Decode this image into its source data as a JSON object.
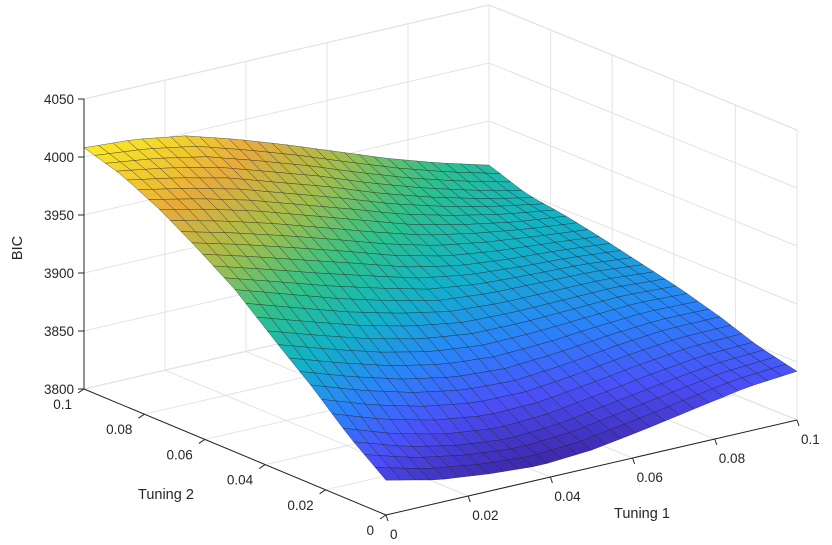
{
  "chart_data": {
    "type": "surface",
    "title": "",
    "xlabel": "Tuning 1",
    "ylabel": "Tuning 2",
    "zlabel": "BIC",
    "xlim": [
      0,
      0.1
    ],
    "ylim": [
      0,
      0.1
    ],
    "zlim": [
      3800,
      4050
    ],
    "x_ticks": [
      "0",
      "0.02",
      "0.04",
      "0.06",
      "0.08",
      "0.1"
    ],
    "y_ticks": [
      "0",
      "0.02",
      "0.04",
      "0.06",
      "0.08",
      "0.1"
    ],
    "z_ticks": [
      "3800",
      "3850",
      "3900",
      "3950",
      "4000",
      "4050"
    ],
    "grid": true,
    "colormap": [
      "#3e26a8",
      "#4b4ff8",
      "#2a84fb",
      "#12b2c6",
      "#2fc18a",
      "#a3be4c",
      "#e8ab3b",
      "#f9e827"
    ],
    "x": [
      0,
      0.0125,
      0.025,
      0.0375,
      0.05,
      0.0625,
      0.075,
      0.0875,
      0.1
    ],
    "y": [
      0,
      0.0125,
      0.025,
      0.0375,
      0.05,
      0.0625,
      0.075,
      0.0875,
      0.1
    ],
    "z": [
      [
        3830,
        3820,
        3815,
        3812,
        3815,
        3822,
        3830,
        3838,
        3842
      ],
      [
        3855,
        3840,
        3830,
        3825,
        3828,
        3835,
        3842,
        3848,
        3850
      ],
      [
        3885,
        3870,
        3858,
        3850,
        3848,
        3852,
        3858,
        3862,
        3862
      ],
      [
        3912,
        3898,
        3885,
        3875,
        3870,
        3870,
        3872,
        3874,
        3872
      ],
      [
        3940,
        3926,
        3912,
        3900,
        3890,
        3886,
        3885,
        3884,
        3880
      ],
      [
        3962,
        3950,
        3937,
        3924,
        3910,
        3900,
        3895,
        3892,
        3888
      ],
      [
        3982,
        3972,
        3960,
        3946,
        3932,
        3918,
        3908,
        3900,
        3895
      ],
      [
        3998,
        3990,
        3980,
        3966,
        3952,
        3936,
        3922,
        3910,
        3900
      ],
      [
        4008,
        4005,
        3998,
        3985,
        3970,
        3954,
        3938,
        3924,
        3912
      ]
    ]
  }
}
